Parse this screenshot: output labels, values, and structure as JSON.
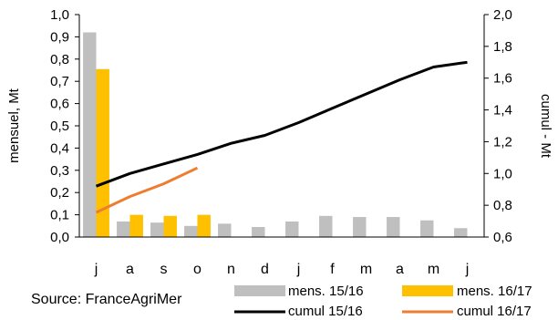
{
  "chart_data": {
    "type": "bar",
    "categories": [
      "j",
      "a",
      "s",
      "o",
      "n",
      "d",
      "j",
      "f",
      "m",
      "a",
      "m",
      "j"
    ],
    "ylabel": "mensuel, Mt",
    "y2label": "cumul - Mt",
    "ylim": [
      0,
      1.0
    ],
    "y2lim": [
      0.6,
      2.0
    ],
    "yticks": [
      "0,0",
      "0,1",
      "0,2",
      "0,3",
      "0,4",
      "0,5",
      "0,6",
      "0,7",
      "0,8",
      "0,9",
      "1,0"
    ],
    "y2ticks": [
      "0,6",
      "0,8",
      "1,0",
      "1,2",
      "1,4",
      "1,6",
      "1,8",
      "2,0"
    ],
    "grid": false,
    "legend_position": "bottom",
    "source": "Source: FranceAgriMer",
    "series": [
      {
        "name": "mens. 15/16",
        "type": "bar",
        "axis": "left",
        "color": "#bfbfbf",
        "values": [
          0.92,
          0.07,
          0.065,
          0.05,
          0.06,
          0.045,
          0.07,
          0.095,
          0.09,
          0.09,
          0.075,
          0.04
        ]
      },
      {
        "name": "mens. 16/17",
        "type": "bar",
        "axis": "left",
        "color": "#ffc000",
        "values": [
          0.755,
          0.1,
          0.095,
          0.1,
          null,
          null,
          null,
          null,
          null,
          null,
          null,
          null
        ]
      },
      {
        "name": "cumul 15/16",
        "type": "line",
        "axis": "right",
        "color": "#000000",
        "values": [
          0.92,
          1.0,
          1.06,
          1.12,
          1.19,
          1.24,
          1.32,
          1.41,
          1.5,
          1.59,
          1.67,
          1.7
        ]
      },
      {
        "name": "cumul 16/17",
        "type": "line",
        "axis": "right",
        "color": "#ed7d31",
        "values": [
          0.755,
          0.855,
          0.935,
          1.035,
          null,
          null,
          null,
          null,
          null,
          null,
          null,
          null
        ]
      }
    ]
  }
}
